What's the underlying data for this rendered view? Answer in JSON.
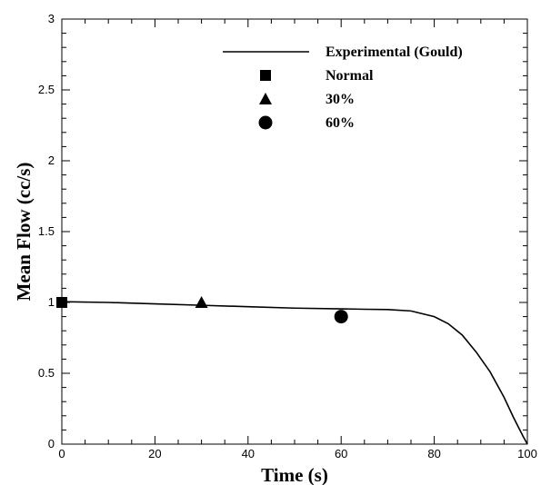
{
  "chart_data": {
    "type": "line",
    "xlabel": "Time (s)",
    "ylabel": "Mean Flow (cc/s)",
    "xlim": [
      0,
      100
    ],
    "ylim": [
      0,
      3
    ],
    "x_ticks": [
      "0",
      "20",
      "40",
      "60",
      "80",
      "100"
    ],
    "y_ticks": [
      "0",
      "0.5",
      "1",
      "1.5",
      "2",
      "2.5",
      "3"
    ],
    "grid": false,
    "legend_position": "top-right",
    "series": [
      {
        "name": "Experimental (Gould)",
        "marker": "line",
        "x": [
          0,
          10,
          20,
          30,
          40,
          50,
          60,
          65,
          70,
          75,
          80,
          83,
          86,
          89,
          92,
          95,
          97,
          99,
          100
        ],
        "y": [
          1.005,
          1.0,
          0.99,
          0.98,
          0.97,
          0.96,
          0.955,
          0.952,
          0.95,
          0.94,
          0.9,
          0.85,
          0.77,
          0.65,
          0.51,
          0.33,
          0.19,
          0.06,
          0.0
        ]
      },
      {
        "name": "Normal",
        "marker": "square",
        "x": [
          0
        ],
        "y": [
          1.0
        ]
      },
      {
        "name": "30%",
        "marker": "triangle",
        "x": [
          30
        ],
        "y": [
          1.0
        ]
      },
      {
        "name": "60%",
        "marker": "circle",
        "x": [
          60
        ],
        "y": [
          0.9
        ]
      }
    ]
  }
}
